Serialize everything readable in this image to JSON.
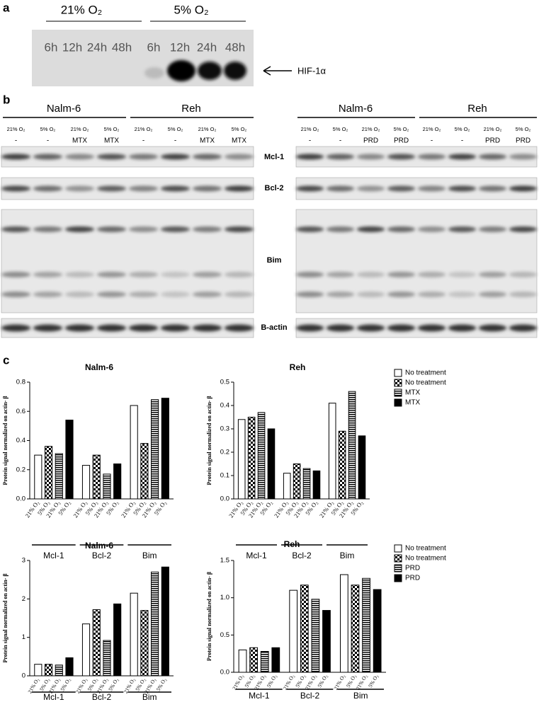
{
  "panel_a": {
    "label": "a",
    "conditions": [
      "21% O₂",
      "5% O₂"
    ],
    "timepoints": [
      "6h",
      "12h",
      "24h",
      "48h"
    ],
    "protein": "HIF-1α"
  },
  "panel_b": {
    "label": "b",
    "proteins": [
      "Mcl-1",
      "Bcl-2",
      "Bim",
      "B-actin"
    ],
    "blots": [
      {
        "cell_lines": [
          "Nalm-6",
          "Reh"
        ],
        "oxygen": [
          "21% O₂",
          "5% O₂",
          "21% O₂",
          "5% O₂"
        ],
        "treatment": [
          "-",
          "-",
          "MTX",
          "MTX"
        ]
      },
      {
        "cell_lines": [
          "Nalm-6",
          "Reh"
        ],
        "oxygen": [
          "21% O₂",
          "5% O₂",
          "21% O₂",
          "5% O₂"
        ],
        "treatment": [
          "-",
          "-",
          "PRD",
          "PRD"
        ]
      }
    ]
  },
  "panel_c": {
    "label": "c"
  },
  "chart_data": [
    {
      "type": "bar",
      "title": "Nalm-6",
      "y_label": "Protein signal normalized on actin- β",
      "categories": [
        "Mcl-1",
        "Bcl-2",
        "Bim"
      ],
      "bar_labels": [
        "21% O₂",
        "5% O₂",
        "21% O₂",
        "5% O₂"
      ],
      "series": [
        {
          "pattern": "none",
          "color": "#000000",
          "values": [
            0.3,
            0.23,
            0.64
          ]
        },
        {
          "pattern": "checker",
          "color": "#000000",
          "values": [
            0.36,
            0.3,
            0.38
          ]
        },
        {
          "pattern": "hstripe",
          "color": "#000000",
          "values": [
            0.31,
            0.17,
            0.68
          ]
        },
        {
          "pattern": "solid",
          "color": "#000000",
          "values": [
            0.54,
            0.24,
            0.69
          ]
        }
      ],
      "ylim": [
        0,
        0.8
      ],
      "yticks": [
        {
          "value": 0,
          "label": "0.0"
        },
        0.2,
        0.4,
        0.6,
        0.8
      ]
    },
    {
      "type": "bar",
      "title": "Reh",
      "y_label": "Protein signal normalized on actin- β",
      "categories": [
        "Mcl-1",
        "Bcl-2",
        "Bim"
      ],
      "bar_labels": [
        "21% O₂",
        "5% O₂",
        "21% O₂",
        "5% O₂"
      ],
      "series": [
        {
          "name": "No treatment",
          "pattern": "none",
          "color": "#000000",
          "values": [
            0.34,
            0.11,
            0.41
          ]
        },
        {
          "name": "No treatment",
          "pattern": "checker",
          "color": "#000000",
          "values": [
            0.35,
            0.15,
            0.29
          ]
        },
        {
          "name": "MTX",
          "pattern": "hstripe",
          "color": "#000000",
          "values": [
            0.37,
            0.13,
            0.46
          ]
        },
        {
          "name": "MTX",
          "pattern": "solid",
          "color": "#000000",
          "values": [
            0.3,
            0.12,
            0.27
          ]
        }
      ],
      "ylim": [
        0,
        0.5
      ],
      "yticks": [
        {
          "value": 0,
          "label": "0.0"
        },
        0.1,
        0.2,
        0.3,
        0.4,
        0.5
      ],
      "legend": "right"
    },
    {
      "type": "bar",
      "title": "Nalm-6",
      "y_label": "Protein signal normalized on actin- β",
      "categories": [
        "Mcl-1",
        "Bcl-2",
        "Bim"
      ],
      "bar_labels": [
        "21% O₂",
        "5% O₂",
        "21% O₂",
        "5% O₂"
      ],
      "series": [
        {
          "pattern": "none",
          "color": "#000000",
          "values": [
            0.3,
            1.35,
            2.15
          ]
        },
        {
          "pattern": "checker",
          "color": "#000000",
          "values": [
            0.3,
            1.72,
            1.7
          ]
        },
        {
          "pattern": "hstripe",
          "color": "#000000",
          "values": [
            0.28,
            0.92,
            2.7
          ]
        },
        {
          "pattern": "solid",
          "color": "#000000",
          "values": [
            0.47,
            1.87,
            2.83
          ]
        }
      ],
      "ylim": [
        0,
        3
      ],
      "yticks": [
        0,
        1,
        2,
        3
      ]
    },
    {
      "type": "bar",
      "title": "Reh",
      "y_label": "Protein signal normalized on actin- β",
      "categories": [
        "Mcl-1",
        "Bcl-2",
        "Bim"
      ],
      "bar_labels": [
        "21% O₂",
        "5% O₂",
        "21% O₂",
        "5% O₂"
      ],
      "series": [
        {
          "name": "No treatment",
          "pattern": "none",
          "color": "#000000",
          "values": [
            0.3,
            1.1,
            1.31
          ]
        },
        {
          "name": "No treatment",
          "pattern": "checker",
          "color": "#000000",
          "values": [
            0.33,
            1.17,
            1.17
          ]
        },
        {
          "name": "PRD",
          "pattern": "hstripe",
          "color": "#000000",
          "values": [
            0.28,
            0.98,
            1.26
          ]
        },
        {
          "name": "PRD",
          "pattern": "solid",
          "color": "#000000",
          "values": [
            0.33,
            0.83,
            1.11
          ]
        }
      ],
      "ylim": [
        0,
        1.5
      ],
      "yticks": [
        {
          "value": 0,
          "label": "0.0"
        },
        0.5,
        {
          "value": 1,
          "label": "1.0"
        },
        1.5
      ],
      "legend": "right"
    }
  ]
}
